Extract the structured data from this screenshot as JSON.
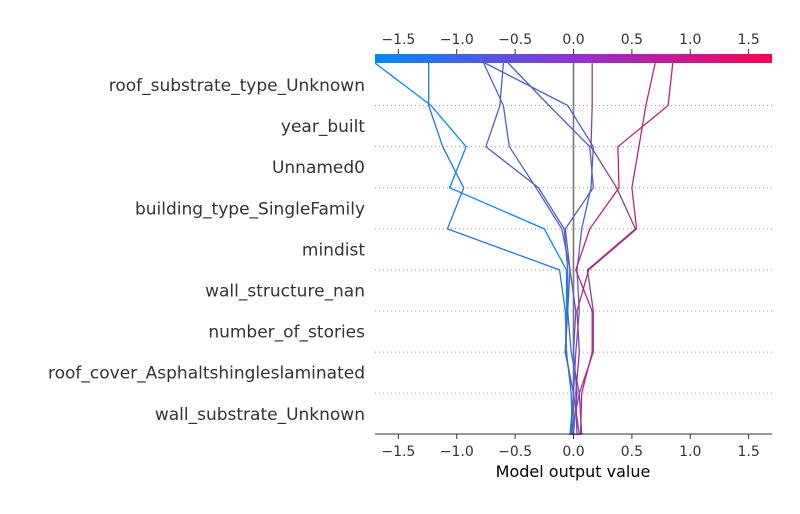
{
  "chart_data": {
    "type": "line",
    "subtype": "shap-decision-plot",
    "xlabel": "Model output value",
    "xlim": [
      -1.7,
      1.7
    ],
    "xticks": [
      "−1.5",
      "−1.0",
      "−0.5",
      "0.0",
      "0.5",
      "1.0",
      "1.5"
    ],
    "xtick_values": [
      -1.5,
      -1.0,
      -0.5,
      0.0,
      0.5,
      1.0,
      1.5
    ],
    "base_value": 0.0,
    "features": [
      "roof_substrate_type_Unknown",
      "year_built",
      "Unnamed0",
      "building_type_SingleFamily",
      "mindist",
      "wall_structure_nan",
      "number_of_stories",
      "roof_cover_Asphaltshingleslaminated",
      "wall_substrate_Unknown"
    ],
    "checkpoint_order": "bottom (base) to top (final output)",
    "colormap": [
      "#008bfb",
      "#ff0052"
    ],
    "grid": "dotted horizontal",
    "series": [
      {
        "values": [
          0.0,
          -0.01,
          -0.02,
          -0.06,
          -0.07,
          -0.12,
          -1.08,
          -0.94,
          -1.12,
          -1.24,
          -1.24
        ]
      },
      {
        "values": [
          0.0,
          -0.03,
          0.0,
          -0.07,
          -0.06,
          -0.06,
          -0.25,
          -1.06,
          -0.92,
          -1.22,
          -1.7
        ]
      },
      {
        "values": [
          0.0,
          -0.02,
          0.05,
          -0.02,
          -0.05,
          -0.03,
          -0.1,
          -0.32,
          -0.55,
          -0.6,
          -0.77
        ]
      },
      {
        "values": [
          0.0,
          -0.02,
          0.0,
          -0.07,
          -0.05,
          -0.05,
          -0.08,
          -0.3,
          -0.75,
          -0.63,
          -0.6
        ]
      },
      {
        "values": [
          0.0,
          0.0,
          0.03,
          0.0,
          0.02,
          -0.03,
          -0.07,
          0.17,
          0.14,
          -0.21,
          -0.56
        ]
      },
      {
        "values": [
          0.0,
          0.05,
          0.0,
          0.02,
          0.05,
          0.03,
          0.07,
          0.15,
          0.17,
          -0.05,
          -0.76
        ]
      },
      {
        "values": [
          0.0,
          0.07,
          0.05,
          0.17,
          0.17,
          0.12,
          0.53,
          0.37,
          0.15,
          0.16,
          0.16
        ]
      },
      {
        "values": [
          0.0,
          0.03,
          0.02,
          0.05,
          0.03,
          0.13,
          0.54,
          0.5,
          0.56,
          0.62,
          0.7
        ]
      },
      {
        "values": [
          0.0,
          0.06,
          0.07,
          0.16,
          0.16,
          0.02,
          0.14,
          0.39,
          0.38,
          0.81,
          0.85
        ]
      }
    ]
  }
}
